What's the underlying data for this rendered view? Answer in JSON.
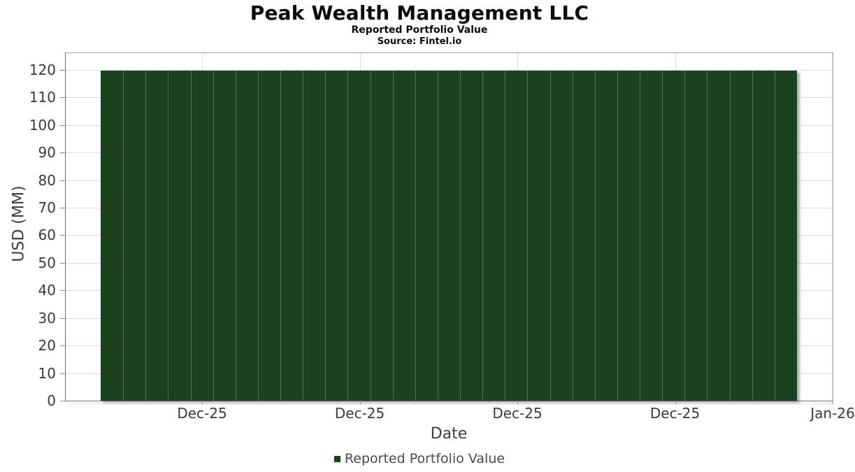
{
  "chart_data": {
    "type": "bar",
    "title": "Peak Wealth Management LLC",
    "subtitle": "Reported Portfolio Value",
    "source": "Source: Fintel.io",
    "xlabel": "Date",
    "ylabel": "USD (MM)",
    "ylim": [
      0,
      126
    ],
    "yticks": [
      0,
      10,
      20,
      30,
      40,
      50,
      60,
      70,
      80,
      90,
      100,
      110,
      120
    ],
    "x_tick_labels": [
      "Dec-25",
      "Dec-25",
      "Dec-25",
      "Dec-25",
      "Jan-26"
    ],
    "grid": true,
    "legend": {
      "label": "Reported Portfolio Value",
      "position": "bottom",
      "color": "#1a4120"
    },
    "series": [
      {
        "name": "Reported Portfolio Value",
        "color": "#1a4120",
        "values": [
          119.7,
          119.7,
          119.7,
          119.7,
          119.7,
          119.7,
          119.7,
          119.7,
          119.7,
          119.7,
          119.7,
          119.7,
          119.7,
          119.7,
          119.7,
          119.7,
          119.7,
          119.7,
          119.7,
          119.7,
          119.7,
          119.7,
          119.7,
          119.7,
          119.7,
          119.7,
          119.7,
          119.7,
          119.7,
          119.7,
          119.7
        ]
      }
    ]
  }
}
